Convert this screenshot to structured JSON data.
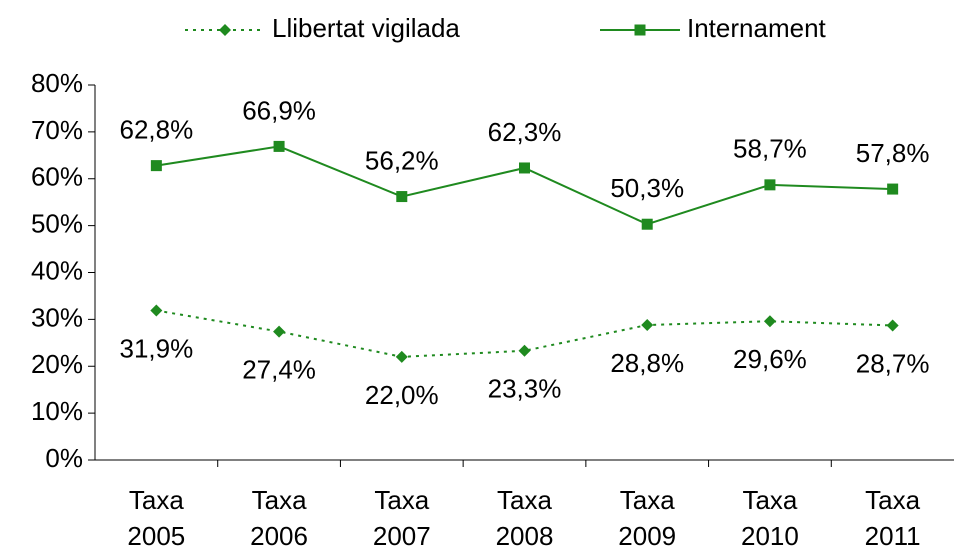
{
  "chart_data": {
    "type": "line",
    "categories": [
      "Taxa 2005",
      "Taxa 2006",
      "Taxa 2007",
      "Taxa 2008",
      "Taxa 2009",
      "Taxa 2010",
      "Taxa 2011"
    ],
    "series": [
      {
        "name": "Llibertat vigilada",
        "color": "#1f8a1f",
        "dash": "dotted",
        "marker": "diamond",
        "label_position": "below",
        "values": [
          31.9,
          27.4,
          22.0,
          23.3,
          28.8,
          29.6,
          28.7
        ],
        "value_labels": [
          "31,9%",
          "27,4%",
          "22,0%",
          "23,3%",
          "28,8%",
          "29,6%",
          "28,7%"
        ]
      },
      {
        "name": "Internament",
        "color": "#1f8a1f",
        "dash": "solid",
        "marker": "square",
        "label_position": "above",
        "values": [
          62.8,
          66.9,
          56.2,
          62.3,
          50.3,
          58.7,
          57.8
        ],
        "value_labels": [
          "62,8%",
          "66,9%",
          "56,2%",
          "62,3%",
          "50,3%",
          "58,7%",
          "57,8%"
        ]
      }
    ],
    "ylim": [
      0,
      80
    ],
    "yticks": [
      {
        "value": 0,
        "label": "0%"
      },
      {
        "value": 10,
        "label": "10%"
      },
      {
        "value": 20,
        "label": "20%"
      },
      {
        "value": 30,
        "label": "30%"
      },
      {
        "value": 40,
        "label": "40%"
      },
      {
        "value": 50,
        "label": "50%"
      },
      {
        "value": 60,
        "label": "60%"
      },
      {
        "value": 70,
        "label": "70%"
      },
      {
        "value": 80,
        "label": "80%"
      }
    ],
    "grid": false,
    "legend": "top"
  }
}
